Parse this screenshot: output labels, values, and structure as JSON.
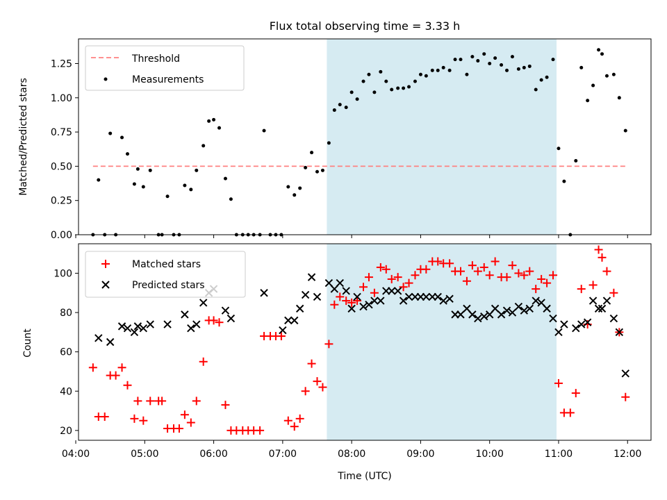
{
  "chart_data": [
    {
      "type": "scatter",
      "title": "Flux total observing time = 3.33 h",
      "ylabel": "Matched/Predicted stars",
      "xlim": [
        4.04,
        12.34
      ],
      "ylim": [
        0,
        1.43
      ],
      "xticks": [
        4,
        5,
        6,
        7,
        8,
        9,
        10,
        11,
        12
      ],
      "yticks": [
        0,
        0.25,
        0.5,
        0.75,
        1.0,
        1.25
      ],
      "ytick_labels": [
        "0.00",
        "0.25",
        "0.50",
        "0.75",
        "1.00",
        "1.25"
      ],
      "legend_position": "top-left",
      "shaded_region": {
        "x": [
          7.64,
          10.97
        ],
        "color": "#add8e6"
      },
      "threshold": {
        "name": "Threshold",
        "y": 0.5,
        "x": [
          4.25,
          12.0
        ],
        "color": "#ff8080"
      },
      "series": [
        {
          "name": "Measurements",
          "color": "#000000",
          "marker": "dot",
          "points": [
            [
              4.25,
              0.0
            ],
            [
              4.33,
              0.4
            ],
            [
              4.42,
              0.0
            ],
            [
              4.5,
              0.74
            ],
            [
              4.58,
              0.0
            ],
            [
              4.67,
              0.71
            ],
            [
              4.75,
              0.59
            ],
            [
              4.85,
              0.37
            ],
            [
              4.9,
              0.48
            ],
            [
              4.98,
              0.35
            ],
            [
              5.08,
              0.47
            ],
            [
              5.2,
              0.0
            ],
            [
              5.25,
              0.0
            ],
            [
              5.33,
              0.28
            ],
            [
              5.42,
              0.0
            ],
            [
              5.5,
              0.0
            ],
            [
              5.58,
              0.36
            ],
            [
              5.67,
              0.33
            ],
            [
              5.75,
              0.47
            ],
            [
              5.85,
              0.65
            ],
            [
              5.93,
              0.83
            ],
            [
              6.0,
              0.84
            ],
            [
              6.08,
              0.78
            ],
            [
              6.17,
              0.41
            ],
            [
              6.25,
              0.26
            ],
            [
              6.33,
              0.0
            ],
            [
              6.42,
              0.0
            ],
            [
              6.5,
              0.0
            ],
            [
              6.58,
              0.0
            ],
            [
              6.67,
              0.0
            ],
            [
              6.73,
              0.76
            ],
            [
              6.82,
              0.0
            ],
            [
              6.9,
              0.0
            ],
            [
              6.98,
              0.0
            ],
            [
              7.08,
              0.35
            ],
            [
              7.17,
              0.29
            ],
            [
              7.25,
              0.34
            ],
            [
              7.33,
              0.49
            ],
            [
              7.42,
              0.6
            ],
            [
              7.5,
              0.46
            ],
            [
              7.58,
              0.47
            ],
            [
              7.67,
              0.67
            ],
            [
              7.75,
              0.91
            ],
            [
              7.83,
              0.95
            ],
            [
              7.92,
              0.93
            ],
            [
              8.0,
              1.04
            ],
            [
              8.08,
              0.99
            ],
            [
              8.17,
              1.12
            ],
            [
              8.25,
              1.17
            ],
            [
              8.33,
              1.04
            ],
            [
              8.42,
              1.19
            ],
            [
              8.5,
              1.12
            ],
            [
              8.58,
              1.06
            ],
            [
              8.67,
              1.07
            ],
            [
              8.75,
              1.07
            ],
            [
              8.83,
              1.08
            ],
            [
              8.92,
              1.12
            ],
            [
              9.0,
              1.17
            ],
            [
              9.08,
              1.16
            ],
            [
              9.17,
              1.2
            ],
            [
              9.25,
              1.2
            ],
            [
              9.33,
              1.22
            ],
            [
              9.42,
              1.2
            ],
            [
              9.5,
              1.28
            ],
            [
              9.58,
              1.28
            ],
            [
              9.67,
              1.17
            ],
            [
              9.75,
              1.3
            ],
            [
              9.83,
              1.27
            ],
            [
              9.92,
              1.32
            ],
            [
              10.0,
              1.25
            ],
            [
              10.08,
              1.29
            ],
            [
              10.17,
              1.24
            ],
            [
              10.25,
              1.2
            ],
            [
              10.33,
              1.3
            ],
            [
              10.42,
              1.21
            ],
            [
              10.5,
              1.22
            ],
            [
              10.58,
              1.23
            ],
            [
              10.67,
              1.06
            ],
            [
              10.75,
              1.13
            ],
            [
              10.83,
              1.15
            ],
            [
              10.92,
              1.28
            ],
            [
              11.0,
              0.63
            ],
            [
              11.08,
              0.39
            ],
            [
              11.17,
              0.0
            ],
            [
              11.25,
              0.54
            ],
            [
              11.33,
              1.22
            ],
            [
              11.42,
              0.98
            ],
            [
              11.5,
              1.09
            ],
            [
              11.58,
              1.35
            ],
            [
              11.63,
              1.32
            ],
            [
              11.7,
              1.16
            ],
            [
              11.8,
              1.17
            ],
            [
              11.88,
              1.0
            ],
            [
              11.97,
              0.76
            ]
          ]
        }
      ]
    },
    {
      "type": "scatter",
      "xlabel": "Time (UTC)",
      "ylabel": "Count",
      "xlim": [
        4.04,
        12.34
      ],
      "ylim": [
        15,
        115
      ],
      "xticks": [
        4,
        5,
        6,
        7,
        8,
        9,
        10,
        11,
        12
      ],
      "xtick_labels": [
        "04:00",
        "05:00",
        "06:00",
        "07:00",
        "08:00",
        "09:00",
        "10:00",
        "11:00",
        "12:00"
      ],
      "yticks": [
        20,
        40,
        60,
        80,
        100
      ],
      "legend_position": "top-left",
      "shaded_region": {
        "x": [
          7.64,
          10.97
        ],
        "color": "#add8e6"
      },
      "series": [
        {
          "name": "Matched stars",
          "color": "#ff0000",
          "marker": "plus",
          "points": [
            [
              4.25,
              52
            ],
            [
              4.33,
              27
            ],
            [
              4.42,
              27
            ],
            [
              4.5,
              48
            ],
            [
              4.58,
              48
            ],
            [
              4.67,
              52
            ],
            [
              4.75,
              43
            ],
            [
              4.85,
              26
            ],
            [
              4.9,
              35
            ],
            [
              4.98,
              25
            ],
            [
              5.08,
              35
            ],
            [
              5.2,
              35
            ],
            [
              5.25,
              35
            ],
            [
              5.33,
              21
            ],
            [
              5.42,
              21
            ],
            [
              5.5,
              21
            ],
            [
              5.58,
              28
            ],
            [
              5.67,
              24
            ],
            [
              5.75,
              35
            ],
            [
              5.85,
              55
            ],
            [
              5.93,
              76
            ],
            [
              6.0,
              76
            ],
            [
              6.08,
              75
            ],
            [
              6.17,
              33
            ],
            [
              6.25,
              20
            ],
            [
              6.33,
              20
            ],
            [
              6.42,
              20
            ],
            [
              6.5,
              20
            ],
            [
              6.58,
              20
            ],
            [
              6.67,
              20
            ],
            [
              6.73,
              68
            ],
            [
              6.82,
              68
            ],
            [
              6.9,
              68
            ],
            [
              6.98,
              68
            ],
            [
              7.08,
              25
            ],
            [
              7.17,
              22
            ],
            [
              7.25,
              26
            ],
            [
              7.33,
              40
            ],
            [
              7.42,
              54
            ],
            [
              7.5,
              45
            ],
            [
              7.58,
              42
            ],
            [
              7.67,
              64
            ],
            [
              7.75,
              84
            ],
            [
              7.83,
              88
            ],
            [
              7.92,
              86
            ],
            [
              8.0,
              85
            ],
            [
              8.08,
              86
            ],
            [
              8.17,
              93
            ],
            [
              8.25,
              98
            ],
            [
              8.33,
              90
            ],
            [
              8.42,
              103
            ],
            [
              8.5,
              102
            ],
            [
              8.58,
              97
            ],
            [
              8.67,
              98
            ],
            [
              8.75,
              93
            ],
            [
              8.83,
              95
            ],
            [
              8.92,
              99
            ],
            [
              9.0,
              102
            ],
            [
              9.08,
              102
            ],
            [
              9.17,
              106
            ],
            [
              9.25,
              106
            ],
            [
              9.33,
              105
            ],
            [
              9.42,
              105
            ],
            [
              9.5,
              101
            ],
            [
              9.58,
              101
            ],
            [
              9.67,
              96
            ],
            [
              9.75,
              104
            ],
            [
              9.83,
              101
            ],
            [
              9.92,
              103
            ],
            [
              10.0,
              99
            ],
            [
              10.08,
              106
            ],
            [
              10.17,
              98
            ],
            [
              10.25,
              98
            ],
            [
              10.33,
              104
            ],
            [
              10.42,
              100
            ],
            [
              10.5,
              99
            ],
            [
              10.58,
              101
            ],
            [
              10.67,
              92
            ],
            [
              10.75,
              97
            ],
            [
              10.83,
              95
            ],
            [
              10.92,
              99
            ],
            [
              11.0,
              44
            ],
            [
              11.08,
              29
            ],
            [
              11.17,
              29
            ],
            [
              11.25,
              39
            ],
            [
              11.33,
              92
            ],
            [
              11.42,
              74
            ],
            [
              11.5,
              94
            ],
            [
              11.58,
              112
            ],
            [
              11.63,
              108
            ],
            [
              11.7,
              101
            ],
            [
              11.8,
              90
            ],
            [
              11.88,
              70
            ],
            [
              11.97,
              37
            ]
          ]
        },
        {
          "name": "Predicted stars",
          "color": "#000000",
          "marker": "x",
          "points": [
            [
              4.33,
              67
            ],
            [
              4.5,
              65
            ],
            [
              4.67,
              73
            ],
            [
              4.75,
              72
            ],
            [
              4.85,
              70
            ],
            [
              4.9,
              73
            ],
            [
              4.98,
              72
            ],
            [
              5.08,
              74
            ],
            [
              5.33,
              74
            ],
            [
              5.58,
              79
            ],
            [
              5.67,
              72
            ],
            [
              5.75,
              74
            ],
            [
              5.85,
              85
            ],
            [
              5.93,
              90
            ],
            [
              6.0,
              92
            ],
            [
              6.17,
              81
            ],
            [
              6.25,
              77
            ],
            [
              6.73,
              90
            ],
            [
              7.0,
              71
            ],
            [
              7.08,
              76
            ],
            [
              7.17,
              76
            ],
            [
              7.25,
              82
            ],
            [
              7.33,
              89
            ],
            [
              7.42,
              98
            ],
            [
              7.5,
              88
            ],
            [
              7.67,
              95
            ],
            [
              7.75,
              92
            ],
            [
              7.83,
              95
            ],
            [
              7.92,
              91
            ],
            [
              8.0,
              82
            ],
            [
              8.08,
              88
            ],
            [
              8.17,
              83
            ],
            [
              8.25,
              84
            ],
            [
              8.33,
              86
            ],
            [
              8.42,
              86
            ],
            [
              8.5,
              91
            ],
            [
              8.58,
              91
            ],
            [
              8.67,
              91
            ],
            [
              8.75,
              86
            ],
            [
              8.83,
              88
            ],
            [
              8.92,
              88
            ],
            [
              9.0,
              88
            ],
            [
              9.08,
              88
            ],
            [
              9.17,
              88
            ],
            [
              9.25,
              88
            ],
            [
              9.33,
              86
            ],
            [
              9.42,
              87
            ],
            [
              9.5,
              79
            ],
            [
              9.58,
              79
            ],
            [
              9.67,
              82
            ],
            [
              9.75,
              79
            ],
            [
              9.83,
              77
            ],
            [
              9.92,
              78
            ],
            [
              10.0,
              79
            ],
            [
              10.08,
              82
            ],
            [
              10.17,
              79
            ],
            [
              10.25,
              81
            ],
            [
              10.33,
              80
            ],
            [
              10.42,
              83
            ],
            [
              10.5,
              81
            ],
            [
              10.58,
              82
            ],
            [
              10.67,
              86
            ],
            [
              10.75,
              85
            ],
            [
              10.83,
              82
            ],
            [
              10.92,
              77
            ],
            [
              11.0,
              70
            ],
            [
              11.08,
              74
            ],
            [
              11.25,
              72
            ],
            [
              11.33,
              74
            ],
            [
              11.42,
              75
            ],
            [
              11.5,
              86
            ],
            [
              11.58,
              82
            ],
            [
              11.63,
              82
            ],
            [
              11.7,
              86
            ],
            [
              11.8,
              77
            ],
            [
              11.88,
              70
            ],
            [
              11.97,
              49
            ]
          ]
        }
      ]
    }
  ]
}
